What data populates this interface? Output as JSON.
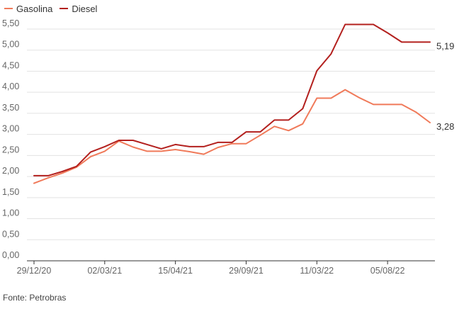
{
  "chart_data": {
    "type": "line",
    "legend_position": "top-left",
    "grid": true,
    "ylim": [
      0,
      5.5
    ],
    "yticks": [
      "0,00",
      "0,50",
      "1,00",
      "1,50",
      "2,00",
      "2,50",
      "3,00",
      "3,50",
      "4,00",
      "4,50",
      "5,00",
      "5,50"
    ],
    "xtick_labels": [
      "29/12/20",
      "02/03/21",
      "15/04/21",
      "29/09/21",
      "11/03/22",
      "05/08/22"
    ],
    "series": [
      {
        "name": "Gasolina",
        "color": "#f07a5a",
        "end_label": "3,28",
        "values": [
          1.84,
          1.97,
          2.08,
          2.22,
          2.47,
          2.6,
          2.84,
          2.7,
          2.6,
          2.6,
          2.64,
          2.59,
          2.53,
          2.69,
          2.78,
          2.78,
          2.98,
          3.19,
          3.09,
          3.25,
          3.86,
          3.86,
          4.06,
          3.87,
          3.71,
          3.71,
          3.71,
          3.53,
          3.28
        ]
      },
      {
        "name": "Diesel",
        "color": "#b3201e",
        "end_label": "5,19",
        "values": [
          2.02,
          2.02,
          2.12,
          2.24,
          2.58,
          2.71,
          2.86,
          2.86,
          2.76,
          2.66,
          2.76,
          2.71,
          2.71,
          2.81,
          2.81,
          3.06,
          3.06,
          3.34,
          3.34,
          3.61,
          4.51,
          4.91,
          5.61,
          5.61,
          5.61,
          5.41,
          5.19,
          5.19,
          5.19
        ]
      }
    ]
  },
  "source": "Fonte: Petrobras"
}
